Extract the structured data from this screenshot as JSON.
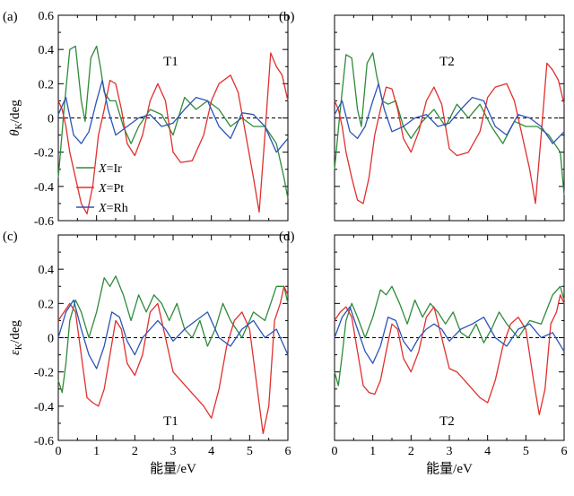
{
  "colors": {
    "Ir": "#2e8b3a",
    "Pt": "#e0302e",
    "Rh": "#2c54b8",
    "axis": "#000000",
    "zero_line": "#000000"
  },
  "chart_data": [
    {
      "type": "line",
      "panel_label": "(a)",
      "title": "T1",
      "ylabel": "θK/deg",
      "xlim": [
        0,
        6
      ],
      "ylim": [
        -0.6,
        0.6
      ],
      "xticks": [
        "",
        "",
        "",
        "",
        "",
        "",
        ""
      ],
      "yticks": [
        "-0.6",
        "-0.4",
        "-0.2",
        "0",
        "0.2",
        "0.4",
        "0.6"
      ],
      "legend": {
        "placement": "lower-left",
        "entries": [
          "X=Ir",
          "X=Pt",
          "X=Rh"
        ]
      },
      "series": [
        {
          "name": "X=Ir",
          "color_key": "Ir",
          "x": [
            0,
            0.15,
            0.3,
            0.45,
            0.6,
            0.7,
            0.85,
            1.0,
            1.1,
            1.2,
            1.35,
            1.5,
            1.7,
            1.9,
            2.1,
            2.4,
            2.7,
            3.0,
            3.3,
            3.6,
            3.9,
            4.2,
            4.5,
            4.8,
            5.1,
            5.4,
            5.7,
            5.9,
            6.0
          ],
          "values": [
            -0.35,
            0.05,
            0.4,
            0.42,
            0.1,
            -0.02,
            0.35,
            0.42,
            0.3,
            0.15,
            0.1,
            0.1,
            -0.05,
            -0.15,
            -0.05,
            0.05,
            0.02,
            -0.1,
            0.12,
            0.05,
            0.1,
            0.05,
            -0.05,
            0.0,
            -0.05,
            -0.05,
            -0.15,
            -0.35,
            -0.47
          ]
        },
        {
          "name": "X=Pt",
          "color_key": "Pt",
          "x": [
            0,
            0.1,
            0.2,
            0.3,
            0.45,
            0.6,
            0.75,
            0.9,
            1.05,
            1.2,
            1.35,
            1.5,
            1.65,
            1.8,
            2.0,
            2.2,
            2.4,
            2.6,
            2.8,
            3.0,
            3.2,
            3.5,
            3.8,
            4.0,
            4.2,
            4.5,
            4.7,
            4.9,
            5.1,
            5.25,
            5.4,
            5.55,
            5.7,
            5.85,
            6.0
          ],
          "values": [
            0.1,
            0.05,
            -0.05,
            -0.2,
            -0.35,
            -0.5,
            -0.56,
            -0.4,
            -0.1,
            0.05,
            0.22,
            0.2,
            0.05,
            -0.15,
            -0.22,
            -0.1,
            0.1,
            0.2,
            0.1,
            -0.2,
            -0.26,
            -0.25,
            -0.1,
            0.1,
            0.2,
            0.25,
            0.15,
            -0.1,
            -0.35,
            -0.55,
            -0.1,
            0.38,
            0.3,
            0.25,
            0.1
          ]
        },
        {
          "name": "X=Rh",
          "color_key": "Rh",
          "x": [
            0,
            0.2,
            0.4,
            0.6,
            0.8,
            1.0,
            1.15,
            1.3,
            1.5,
            1.8,
            2.1,
            2.4,
            2.7,
            3.0,
            3.3,
            3.6,
            3.9,
            4.2,
            4.5,
            4.8,
            5.1,
            5.4,
            5.7,
            6.0
          ],
          "values": [
            0.02,
            0.12,
            -0.1,
            -0.15,
            -0.08,
            0.1,
            0.22,
            0.05,
            -0.1,
            -0.05,
            0.0,
            0.02,
            -0.05,
            -0.03,
            0.05,
            0.12,
            0.1,
            -0.05,
            -0.12,
            0.03,
            0.02,
            -0.05,
            -0.2,
            -0.12
          ]
        }
      ]
    },
    {
      "type": "line",
      "panel_label": "(b)",
      "title": "T2",
      "ylabel": "",
      "xlim": [
        0,
        6
      ],
      "ylim": [
        -0.6,
        0.6
      ],
      "xticks": [
        "",
        "",
        "",
        "",
        "",
        "",
        ""
      ],
      "yticks": [
        "",
        "",
        "",
        "",
        "",
        "",
        ""
      ],
      "series": [
        {
          "name": "X=Ir",
          "color_key": "Ir",
          "x": [
            0,
            0.15,
            0.3,
            0.45,
            0.6,
            0.7,
            0.85,
            1.0,
            1.1,
            1.25,
            1.4,
            1.6,
            1.8,
            2.0,
            2.3,
            2.6,
            2.9,
            3.2,
            3.5,
            3.8,
            4.1,
            4.4,
            4.7,
            5.0,
            5.3,
            5.6,
            5.9,
            6.0
          ],
          "values": [
            -0.3,
            0.05,
            0.37,
            0.35,
            0.05,
            -0.05,
            0.32,
            0.38,
            0.25,
            0.1,
            0.08,
            0.1,
            -0.05,
            -0.12,
            -0.02,
            0.05,
            -0.05,
            0.08,
            0.0,
            0.08,
            -0.05,
            -0.15,
            -0.02,
            -0.05,
            -0.05,
            -0.1,
            -0.2,
            -0.45
          ]
        },
        {
          "name": "X=Pt",
          "color_key": "Pt",
          "x": [
            0,
            0.1,
            0.2,
            0.3,
            0.45,
            0.6,
            0.75,
            0.9,
            1.05,
            1.2,
            1.35,
            1.5,
            1.65,
            1.8,
            2.0,
            2.2,
            2.4,
            2.6,
            2.8,
            3.0,
            3.2,
            3.5,
            3.8,
            4.0,
            4.2,
            4.5,
            4.7,
            4.9,
            5.1,
            5.25,
            5.4,
            5.55,
            5.7,
            5.85,
            6.0
          ],
          "values": [
            0.1,
            0.05,
            -0.05,
            -0.2,
            -0.35,
            -0.48,
            -0.5,
            -0.35,
            -0.1,
            0.05,
            0.18,
            0.17,
            0.05,
            -0.12,
            -0.2,
            -0.08,
            0.1,
            0.18,
            0.08,
            -0.18,
            -0.22,
            -0.2,
            -0.08,
            0.12,
            0.18,
            0.2,
            0.1,
            -0.1,
            -0.3,
            -0.5,
            -0.1,
            0.32,
            0.28,
            0.22,
            0.08
          ]
        },
        {
          "name": "X=Rh",
          "color_key": "Rh",
          "x": [
            0,
            0.2,
            0.4,
            0.6,
            0.8,
            1.0,
            1.15,
            1.3,
            1.5,
            1.8,
            2.1,
            2.4,
            2.7,
            3.0,
            3.3,
            3.6,
            3.9,
            4.2,
            4.5,
            4.8,
            5.1,
            5.4,
            5.7,
            6.0
          ],
          "values": [
            0.02,
            0.1,
            -0.08,
            -0.12,
            -0.05,
            0.1,
            0.2,
            0.05,
            -0.08,
            -0.05,
            0.0,
            0.02,
            -0.05,
            -0.03,
            0.05,
            0.12,
            0.1,
            -0.05,
            -0.1,
            0.02,
            0.0,
            -0.05,
            -0.15,
            -0.08
          ]
        }
      ]
    },
    {
      "type": "line",
      "panel_label": "(c)",
      "title": "T1",
      "ylabel": "εK/deg",
      "xlabel": "能量/eV",
      "xlim": [
        0,
        6
      ],
      "ylim": [
        -0.6,
        0.6
      ],
      "xticks": [
        "0",
        "1",
        "2",
        "3",
        "4",
        "5",
        "6"
      ],
      "yticks": [
        "-0.6",
        "-0.4",
        "-0.2",
        "0",
        "0.2",
        "0.4",
        ""
      ],
      "series": [
        {
          "name": "X=Ir",
          "color_key": "Ir",
          "x": [
            0,
            0.1,
            0.2,
            0.3,
            0.45,
            0.6,
            0.8,
            1.0,
            1.2,
            1.35,
            1.5,
            1.7,
            1.9,
            2.1,
            2.3,
            2.5,
            2.7,
            2.9,
            3.1,
            3.3,
            3.5,
            3.7,
            3.9,
            4.1,
            4.3,
            4.5,
            4.8,
            5.1,
            5.4,
            5.7,
            5.9,
            6.0
          ],
          "values": [
            -0.25,
            -0.32,
            -0.15,
            0.1,
            0.22,
            0.15,
            0.0,
            0.15,
            0.35,
            0.3,
            0.36,
            0.25,
            0.1,
            0.25,
            0.15,
            0.25,
            0.2,
            0.1,
            0.2,
            0.05,
            0.0,
            0.1,
            -0.05,
            0.05,
            0.2,
            0.1,
            0.0,
            0.15,
            0.1,
            0.3,
            0.3,
            0.2
          ]
        },
        {
          "name": "X=Pt",
          "color_key": "Pt",
          "x": [
            0,
            0.15,
            0.3,
            0.45,
            0.6,
            0.75,
            0.9,
            1.05,
            1.2,
            1.35,
            1.5,
            1.65,
            1.8,
            2.0,
            2.2,
            2.4,
            2.6,
            2.8,
            3.0,
            3.2,
            3.4,
            3.6,
            3.8,
            4.0,
            4.2,
            4.4,
            4.6,
            4.8,
            5.0,
            5.2,
            5.35,
            5.5,
            5.65,
            5.8,
            5.9,
            6.0
          ],
          "values": [
            0.1,
            0.15,
            0.2,
            0.15,
            -0.1,
            -0.35,
            -0.38,
            -0.4,
            -0.3,
            -0.1,
            0.1,
            0.05,
            -0.15,
            -0.22,
            -0.1,
            0.15,
            0.2,
            0.0,
            -0.2,
            -0.25,
            -0.3,
            -0.35,
            -0.4,
            -0.47,
            -0.3,
            -0.05,
            0.1,
            0.15,
            0.05,
            -0.3,
            -0.56,
            -0.4,
            0.1,
            0.2,
            0.3,
            0.25
          ]
        },
        {
          "name": "X=Rh",
          "color_key": "Rh",
          "x": [
            0,
            0.2,
            0.4,
            0.6,
            0.8,
            1.0,
            1.2,
            1.4,
            1.6,
            1.8,
            2.0,
            2.2,
            2.4,
            2.6,
            2.8,
            3.0,
            3.3,
            3.6,
            3.9,
            4.2,
            4.5,
            4.8,
            5.1,
            5.4,
            5.7,
            6.0
          ],
          "values": [
            0.0,
            0.15,
            0.22,
            0.05,
            -0.1,
            -0.18,
            -0.05,
            0.15,
            0.12,
            -0.02,
            -0.1,
            0.0,
            0.05,
            0.1,
            0.05,
            -0.02,
            0.05,
            0.1,
            0.15,
            0.0,
            -0.05,
            0.05,
            0.1,
            0.0,
            0.05,
            -0.1
          ]
        }
      ]
    },
    {
      "type": "line",
      "panel_label": "(d)",
      "title": "T2",
      "ylabel": "",
      "xlabel": "能量/eV",
      "xlim": [
        0,
        6
      ],
      "ylim": [
        -0.6,
        0.6
      ],
      "xticks": [
        "0",
        "1",
        "2",
        "3",
        "4",
        "5",
        "6"
      ],
      "yticks": [
        "",
        "",
        "",
        "",
        "",
        "",
        ""
      ],
      "series": [
        {
          "name": "X=Ir",
          "color_key": "Ir",
          "x": [
            0,
            0.1,
            0.2,
            0.3,
            0.45,
            0.6,
            0.8,
            1.0,
            1.2,
            1.35,
            1.5,
            1.7,
            1.9,
            2.1,
            2.3,
            2.5,
            2.7,
            2.9,
            3.1,
            3.3,
            3.5,
            3.7,
            3.9,
            4.1,
            4.3,
            4.5,
            4.8,
            5.1,
            5.4,
            5.7,
            5.9,
            6.0
          ],
          "values": [
            -0.2,
            -0.28,
            -0.1,
            0.1,
            0.2,
            0.12,
            0.0,
            0.12,
            0.28,
            0.25,
            0.3,
            0.2,
            0.08,
            0.22,
            0.12,
            0.2,
            0.15,
            0.08,
            0.15,
            0.03,
            0.0,
            0.08,
            -0.03,
            0.05,
            0.15,
            0.08,
            0.0,
            0.1,
            0.08,
            0.25,
            0.3,
            0.22
          ]
        },
        {
          "name": "X=Pt",
          "color_key": "Pt",
          "x": [
            0,
            0.15,
            0.3,
            0.45,
            0.6,
            0.75,
            0.9,
            1.05,
            1.2,
            1.35,
            1.5,
            1.65,
            1.8,
            2.0,
            2.2,
            2.4,
            2.6,
            2.8,
            3.0,
            3.2,
            3.4,
            3.6,
            3.8,
            4.0,
            4.2,
            4.4,
            4.6,
            4.8,
            5.0,
            5.2,
            5.35,
            5.5,
            5.65,
            5.8,
            5.9,
            6.0
          ],
          "values": [
            0.1,
            0.15,
            0.18,
            0.12,
            -0.08,
            -0.28,
            -0.32,
            -0.33,
            -0.25,
            -0.08,
            0.08,
            0.05,
            -0.12,
            -0.2,
            -0.08,
            0.12,
            0.18,
            0.0,
            -0.18,
            -0.2,
            -0.25,
            -0.3,
            -0.35,
            -0.38,
            -0.25,
            -0.05,
            0.08,
            0.12,
            0.05,
            -0.25,
            -0.45,
            -0.3,
            0.08,
            0.15,
            0.25,
            0.2
          ]
        },
        {
          "name": "X=Rh",
          "color_key": "Rh",
          "x": [
            0,
            0.2,
            0.4,
            0.6,
            0.8,
            1.0,
            1.2,
            1.4,
            1.6,
            1.8,
            2.0,
            2.2,
            2.4,
            2.6,
            2.8,
            3.0,
            3.3,
            3.6,
            3.9,
            4.2,
            4.5,
            4.8,
            5.1,
            5.4,
            5.7,
            6.0
          ],
          "values": [
            0.0,
            0.12,
            0.18,
            0.05,
            -0.08,
            -0.15,
            -0.05,
            0.12,
            0.1,
            -0.02,
            -0.08,
            0.0,
            0.05,
            0.08,
            0.05,
            -0.02,
            0.05,
            0.08,
            0.12,
            0.0,
            -0.05,
            0.05,
            0.08,
            0.0,
            0.03,
            -0.08
          ]
        }
      ]
    }
  ]
}
